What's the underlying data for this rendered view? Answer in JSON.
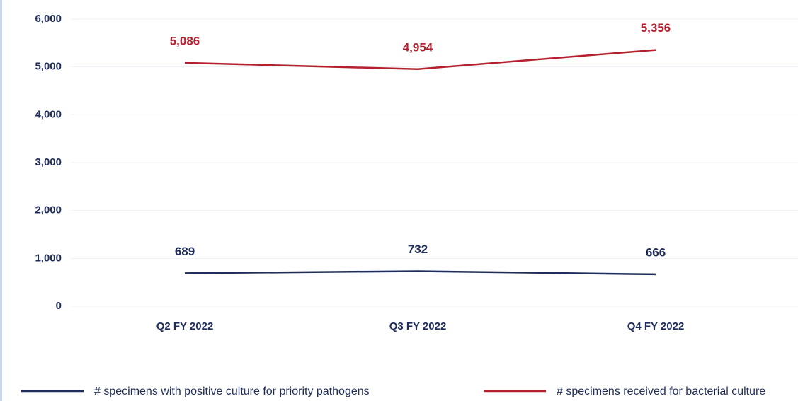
{
  "chart_data": {
    "type": "line",
    "categories": [
      "Q2 FY 2022",
      "Q3 FY 2022",
      "Q4 FY 2022"
    ],
    "series": [
      {
        "name": "# specimens with positive culture for priority pathogens",
        "color": "#1f2d5c",
        "values": [
          689,
          732,
          666
        ],
        "value_labels": [
          "689",
          "732",
          "666"
        ]
      },
      {
        "name": "# specimens received for bacterial culture",
        "color": "#b3202e",
        "values": [
          5086,
          4954,
          5356
        ],
        "value_labels": [
          "5,086",
          "4,954",
          "5,356"
        ]
      }
    ],
    "ylim": [
      0,
      6000
    ],
    "yticks": [
      0,
      {
        "value": 1000,
        "label": "1,000"
      },
      {
        "value": 2000,
        "label": "2,000"
      },
      {
        "value": 3000,
        "label": "3,000"
      },
      {
        "value": 4000,
        "label": "4,000"
      },
      {
        "value": 5000,
        "label": "5,000"
      },
      {
        "value": 6000,
        "label": "6,000"
      }
    ],
    "grid": true,
    "legend": "bottom"
  }
}
